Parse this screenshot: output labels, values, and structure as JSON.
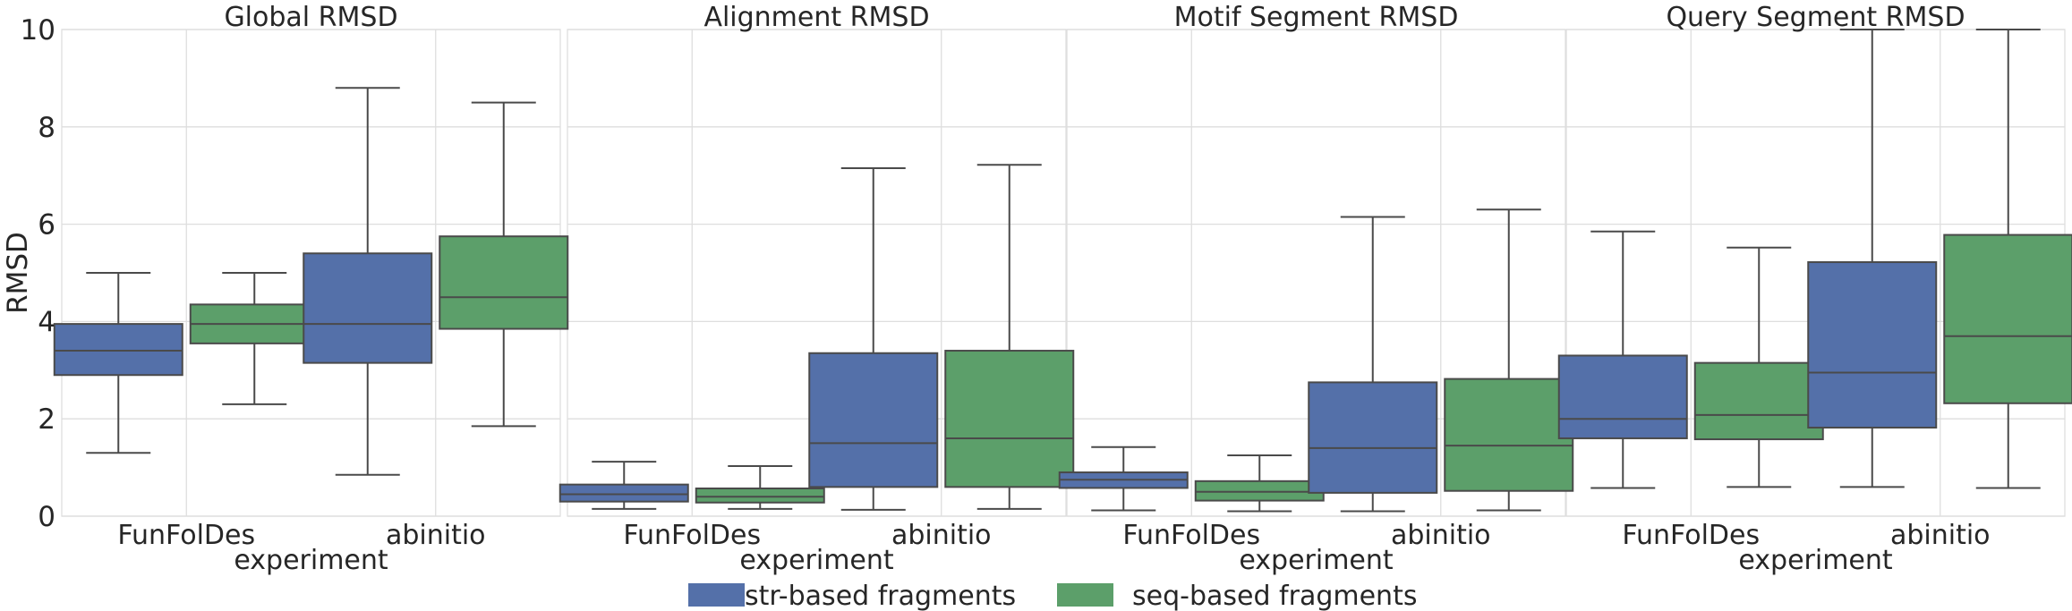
{
  "chart_data": {
    "type": "boxplot",
    "ylabel": "RMSD",
    "xlabel": "experiment",
    "ylim": [
      0,
      10
    ],
    "yticks": [
      "0",
      "2",
      "4",
      "6",
      "8",
      "10"
    ],
    "categories": [
      "FunFolDes",
      "abinitio"
    ],
    "grid": true,
    "legend_position": "bottom-center",
    "series": [
      {
        "name": "str-based fragments",
        "color": "#5470a9"
      },
      {
        "name": "seq-based fragments",
        "color": "#5c9f6a"
      }
    ],
    "panels": [
      {
        "title": "Global RMSD",
        "boxes": [
          [
            {
              "min": 1.3,
              "q1": 2.9,
              "median": 3.4,
              "q3": 3.95,
              "max": 5.0
            },
            {
              "min": 2.3,
              "q1": 3.55,
              "median": 3.95,
              "q3": 4.35,
              "max": 5.0
            }
          ],
          [
            {
              "min": 0.85,
              "q1": 3.15,
              "median": 3.95,
              "q3": 5.4,
              "max": 8.8
            },
            {
              "min": 1.85,
              "q1": 3.85,
              "median": 4.5,
              "q3": 5.75,
              "max": 8.5
            }
          ]
        ]
      },
      {
        "title": "Alignment RMSD",
        "boxes": [
          [
            {
              "min": 0.15,
              "q1": 0.3,
              "median": 0.45,
              "q3": 0.65,
              "max": 1.12
            },
            {
              "min": 0.15,
              "q1": 0.28,
              "median": 0.4,
              "q3": 0.57,
              "max": 1.03
            }
          ],
          [
            {
              "min": 0.13,
              "q1": 0.6,
              "median": 1.5,
              "q3": 3.35,
              "max": 7.15
            },
            {
              "min": 0.15,
              "q1": 0.6,
              "median": 1.6,
              "q3": 3.4,
              "max": 7.22
            }
          ]
        ]
      },
      {
        "title": "Motif Segment RMSD",
        "boxes": [
          [
            {
              "min": 0.12,
              "q1": 0.58,
              "median": 0.75,
              "q3": 0.9,
              "max": 1.42
            },
            {
              "min": 0.1,
              "q1": 0.32,
              "median": 0.5,
              "q3": 0.72,
              "max": 1.25
            }
          ],
          [
            {
              "min": 0.1,
              "q1": 0.48,
              "median": 1.4,
              "q3": 2.75,
              "max": 6.15
            },
            {
              "min": 0.12,
              "q1": 0.52,
              "median": 1.45,
              "q3": 2.82,
              "max": 6.3
            }
          ]
        ]
      },
      {
        "title": "Query Segment RMSD",
        "boxes": [
          [
            {
              "min": 0.58,
              "q1": 1.6,
              "median": 2.0,
              "q3": 3.3,
              "max": 5.85
            },
            {
              "min": 0.6,
              "q1": 1.58,
              "median": 2.08,
              "q3": 3.15,
              "max": 5.52
            }
          ],
          [
            {
              "min": 0.6,
              "q1": 1.82,
              "median": 2.95,
              "q3": 5.22,
              "max": 10.0
            },
            {
              "min": 0.58,
              "q1": 2.32,
              "median": 3.7,
              "q3": 5.78,
              "max": 10.0
            }
          ]
        ]
      }
    ]
  }
}
